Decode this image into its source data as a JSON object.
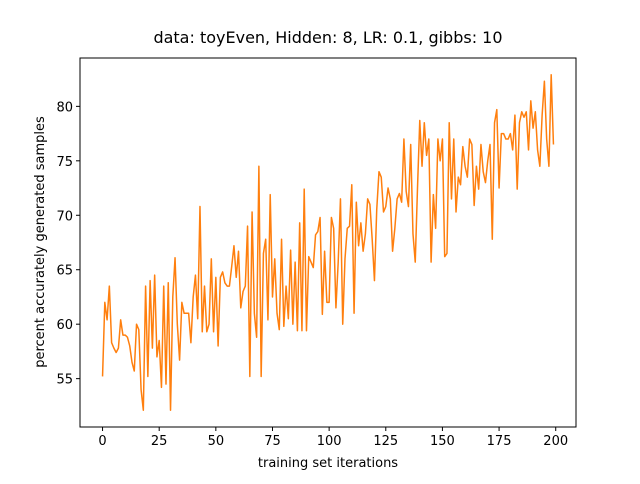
{
  "chart_data": {
    "type": "line",
    "title": "data: toyEven, Hidden: 8, LR: 0.1, gibbs: 10",
    "x_label": "training set iterations",
    "y_label": "percent accurately generated samples",
    "color": "#ff7f0e",
    "xlim": [
      -9.95,
      208.95
    ],
    "xticks": [
      0,
      25,
      50,
      75,
      100,
      125,
      150,
      175,
      200
    ],
    "ylim": [
      50.56,
      84.44
    ],
    "yticks": [
      55,
      60,
      65,
      70,
      75,
      80
    ],
    "x": [
      0,
      1,
      2,
      3,
      4,
      5,
      6,
      7,
      8,
      9,
      10,
      11,
      12,
      13,
      14,
      15,
      16,
      17,
      18,
      19,
      20,
      21,
      22,
      23,
      24,
      25,
      26,
      27,
      28,
      29,
      30,
      31,
      32,
      33,
      34,
      35,
      36,
      37,
      38,
      39,
      40,
      41,
      42,
      43,
      44,
      45,
      46,
      47,
      48,
      49,
      50,
      51,
      52,
      53,
      54,
      55,
      56,
      57,
      58,
      59,
      60,
      61,
      62,
      63,
      64,
      65,
      66,
      67,
      68,
      69,
      70,
      71,
      72,
      73,
      74,
      75,
      76,
      77,
      78,
      79,
      80,
      81,
      82,
      83,
      84,
      85,
      86,
      87,
      88,
      89,
      90,
      91,
      92,
      93,
      94,
      95,
      96,
      97,
      98,
      99,
      100,
      101,
      102,
      103,
      104,
      105,
      106,
      107,
      108,
      109,
      110,
      111,
      112,
      113,
      114,
      115,
      116,
      117,
      118,
      119,
      120,
      121,
      122,
      123,
      124,
      125,
      126,
      127,
      128,
      129,
      130,
      131,
      132,
      133,
      134,
      135,
      136,
      137,
      138,
      139,
      140,
      141,
      142,
      143,
      144,
      145,
      146,
      147,
      148,
      149,
      150,
      151,
      152,
      153,
      154,
      155,
      156,
      157,
      158,
      159,
      160,
      161,
      162,
      163,
      164,
      165,
      166,
      167,
      168,
      169,
      170,
      171,
      172,
      173,
      174,
      175,
      176,
      177,
      178,
      179,
      180,
      181,
      182,
      183,
      184,
      185,
      186,
      187,
      188,
      189,
      190,
      191,
      192,
      193,
      194,
      195,
      196,
      197,
      198,
      199
    ],
    "values": [
      55.2,
      62,
      60.4,
      63.5,
      58.3,
      57.8,
      57.4,
      57.8,
      60.4,
      59,
      59,
      58.8,
      58,
      56.5,
      55.7,
      60,
      59.5,
      54,
      52.1,
      63.5,
      55.2,
      64,
      57.8,
      64.5,
      57,
      58.5,
      54.2,
      63.5,
      54.5,
      63.8,
      52.1,
      62.5,
      66.1,
      60,
      56.7,
      62,
      61,
      61,
      61,
      58.3,
      62.5,
      64.5,
      60.5,
      70.8,
      59.3,
      63.5,
      59.3,
      60,
      66,
      59.3,
      64.3,
      58,
      64.3,
      64.8,
      63.8,
      63.5,
      63.5,
      65.3,
      67.2,
      64.3,
      66.7,
      61.5,
      63,
      63.5,
      69,
      55.2,
      70.3,
      61,
      58.8,
      74.5,
      55.2,
      66.5,
      67.8,
      60.4,
      71.9,
      62.5,
      66,
      61,
      59.5,
      67.8,
      59.8,
      63.5,
      60.5,
      66.8,
      60,
      65.7,
      59.4,
      69.3,
      59.4,
      72.4,
      59.4,
      66.2,
      65.7,
      65.2,
      68.2,
      68.5,
      69.8,
      60.9,
      66.7,
      62,
      62,
      69.8,
      68.8,
      61.5,
      65.7,
      71.5,
      60,
      66,
      68.8,
      69,
      72.8,
      61,
      71.2,
      67.2,
      69.3,
      66.7,
      68.3,
      71.5,
      71,
      67.8,
      64,
      70.5,
      74,
      73.5,
      70.3,
      70.8,
      72.5,
      71.5,
      66.7,
      68.8,
      71.5,
      72,
      71.2,
      77,
      72.2,
      70.8,
      76.5,
      68.3,
      65.7,
      72.5,
      78.7,
      74.5,
      78.5,
      75.5,
      77,
      65.7,
      71.9,
      68.8,
      77,
      75,
      77,
      66.2,
      66.5,
      78.5,
      71.5,
      77,
      70.3,
      73.5,
      72.8,
      76.3,
      74.5,
      73.5,
      77,
      76.5,
      70.9,
      74.5,
      72.4,
      76.5,
      74,
      73,
      75,
      76.5,
      67.8,
      78.5,
      79.7,
      72.5,
      77.5,
      77.5,
      77,
      77,
      77.5,
      76,
      79.2,
      72.4,
      78.5,
      79.5,
      79,
      79.5,
      76,
      80.5,
      78,
      79.5,
      76,
      74.5,
      79.2,
      82.3,
      77,
      74.5,
      82.9,
      76.5
    ]
  }
}
